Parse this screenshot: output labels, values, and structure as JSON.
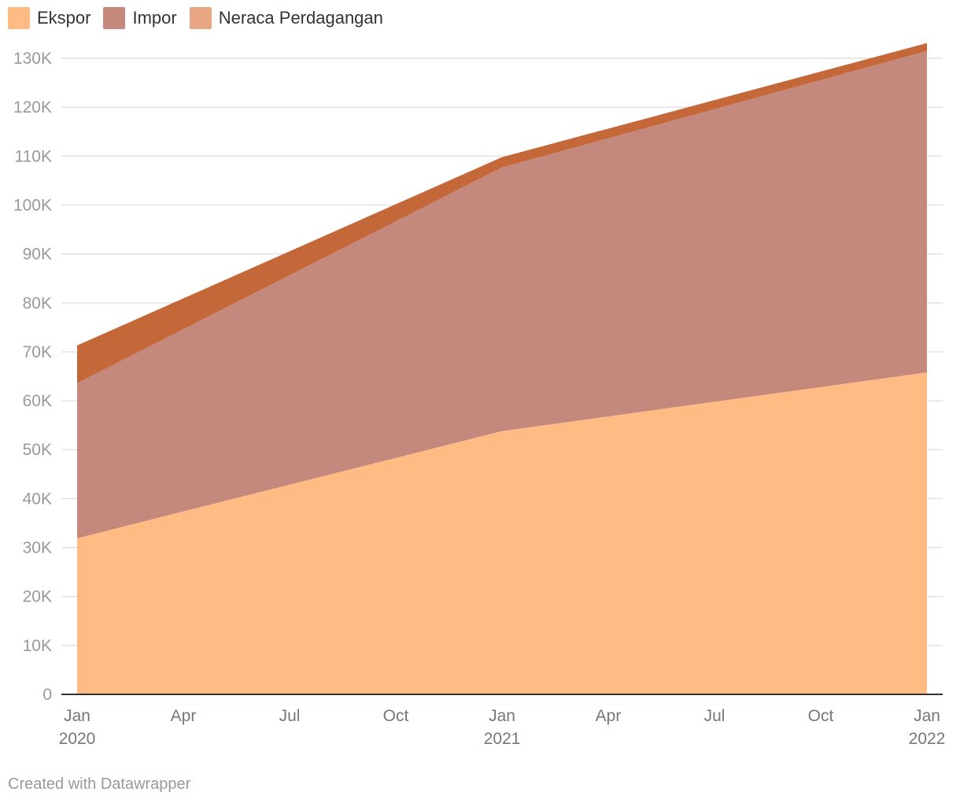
{
  "legend": [
    {
      "label": "Ekspor",
      "color": "#ffbb84"
    },
    {
      "label": "Impor",
      "color": "#c4887c"
    },
    {
      "label": "Neraca Perdagangan",
      "color": "#e9a682"
    }
  ],
  "credit": "Created with Datawrapper",
  "chart_data": {
    "type": "area",
    "stacked": true,
    "title": "",
    "xlabel": "",
    "ylabel": "",
    "x": [
      "2020-01",
      "2021-01",
      "2022-01"
    ],
    "series": [
      {
        "name": "Ekspor",
        "color": "#ffbb84",
        "values": [
          31900,
          53800,
          65800
        ]
      },
      {
        "name": "Impor",
        "color": "#c4887c",
        "values": [
          31700,
          53900,
          65700
        ]
      },
      {
        "name": "Neraca Perdagangan",
        "color": "#c4683a",
        "values": [
          7700,
          2100,
          1600
        ]
      }
    ],
    "ylim": [
      0,
      130000
    ],
    "yticks": [
      "0",
      "10K",
      "20K",
      "30K",
      "40K",
      "50K",
      "60K",
      "70K",
      "80K",
      "90K",
      "100K",
      "110K",
      "120K",
      "130K"
    ],
    "xticks": [
      {
        "month": "Jan",
        "year": "2020"
      },
      {
        "month": "Apr",
        "year": ""
      },
      {
        "month": "Jul",
        "year": ""
      },
      {
        "month": "Oct",
        "year": ""
      },
      {
        "month": "Jan",
        "year": "2021"
      },
      {
        "month": "Apr",
        "year": ""
      },
      {
        "month": "Jul",
        "year": ""
      },
      {
        "month": "Oct",
        "year": ""
      },
      {
        "month": "Jan",
        "year": "2022"
      }
    ],
    "grid": true,
    "legend_position": "top-left"
  }
}
